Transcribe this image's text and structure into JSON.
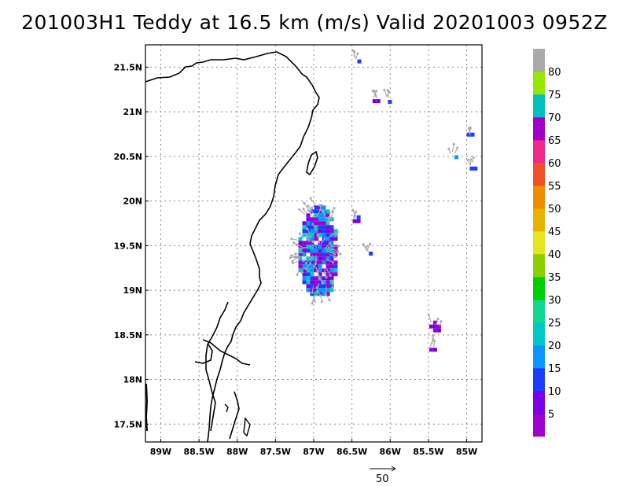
{
  "title": "201003H1 Teddy at 16.5 km (m/s) Valid 20201003 0952Z",
  "map": {
    "lon_range": [
      -89.2,
      -84.8
    ],
    "lat_range": [
      17.3,
      21.75
    ],
    "lon_ticks": [
      {
        "value": -89.0,
        "label": "89W"
      },
      {
        "value": -88.5,
        "label": "88.5W"
      },
      {
        "value": -88.0,
        "label": "88W"
      },
      {
        "value": -87.5,
        "label": "87.5W"
      },
      {
        "value": -87.0,
        "label": "87W"
      },
      {
        "value": -86.5,
        "label": "86.5W"
      },
      {
        "value": -86.0,
        "label": "86W"
      },
      {
        "value": -85.5,
        "label": "85.5W"
      },
      {
        "value": -85.0,
        "label": "85W"
      }
    ],
    "lat_ticks": [
      {
        "value": 21.5,
        "label": "21.5N"
      },
      {
        "value": 21.0,
        "label": "21N"
      },
      {
        "value": 20.5,
        "label": "20.5N"
      },
      {
        "value": 20.0,
        "label": "20N"
      },
      {
        "value": 19.5,
        "label": "19.5N"
      },
      {
        "value": 19.0,
        "label": "19N"
      },
      {
        "value": 18.5,
        "label": "18.5N"
      },
      {
        "value": 18.0,
        "label": "18N"
      },
      {
        "value": 17.5,
        "label": "17.5N"
      }
    ],
    "gridlines": true
  },
  "colorbar": {
    "colors": [
      "#a000d0",
      "#7a00e8",
      "#1e3cff",
      "#0a96ff",
      "#00c8c8",
      "#10d890",
      "#00d000",
      "#8ad000",
      "#e6e61e",
      "#e6b400",
      "#f08c00",
      "#f05028",
      "#f0288c",
      "#a000c8",
      "#00c0c0",
      "#96e600",
      "#aaaaaa"
    ],
    "labels": [
      "5",
      "10",
      "15",
      "20",
      "25",
      "30",
      "35",
      "40",
      "45",
      "50",
      "55",
      "60",
      "65",
      "70",
      "75",
      "80"
    ]
  },
  "vector_reference": {
    "label": "50",
    "value": 50
  },
  "wind_features": [
    {
      "lon": -86.95,
      "lat": 19.45,
      "w": 0.5,
      "h": 1.0,
      "colors": [
        "#1e3cff",
        "#7a00e8",
        "#a000d0",
        "#0a96ff",
        "#00c8c8"
      ]
    },
    {
      "lon": -86.45,
      "lat": 19.8,
      "w": 0.08,
      "h": 0.08,
      "colors": [
        "#1e3cff",
        "#7a00e8"
      ]
    },
    {
      "lon": -86.3,
      "lat": 19.45,
      "w": 0.04,
      "h": 0.04,
      "colors": [
        "#1e3cff"
      ]
    },
    {
      "lon": -86.2,
      "lat": 21.15,
      "w": 0.06,
      "h": 0.07,
      "colors": [
        "#1e3cff",
        "#7a00e8"
      ]
    },
    {
      "lon": -86.05,
      "lat": 21.15,
      "w": 0.02,
      "h": 0.02,
      "colors": [
        "#1e3cff"
      ]
    },
    {
      "lon": -86.45,
      "lat": 21.6,
      "w": 0.04,
      "h": 0.06,
      "colors": [
        "#1e3cff"
      ]
    },
    {
      "lon": -84.97,
      "lat": 20.77,
      "w": 0.06,
      "h": 0.08,
      "colors": [
        "#1e3cff"
      ]
    },
    {
      "lon": -85.18,
      "lat": 20.53,
      "w": 0.02,
      "h": 0.04,
      "colors": [
        "#0a96ff"
      ]
    },
    {
      "lon": -84.93,
      "lat": 20.4,
      "w": 0.03,
      "h": 0.06,
      "colors": [
        "#1e3cff"
      ]
    },
    {
      "lon": -85.42,
      "lat": 18.6,
      "w": 0.14,
      "h": 0.12,
      "colors": [
        "#a000d0",
        "#7a00e8"
      ]
    },
    {
      "lon": -85.45,
      "lat": 18.36,
      "w": 0.08,
      "h": 0.08,
      "colors": [
        "#a000d0",
        "#7a00e8"
      ]
    }
  ]
}
